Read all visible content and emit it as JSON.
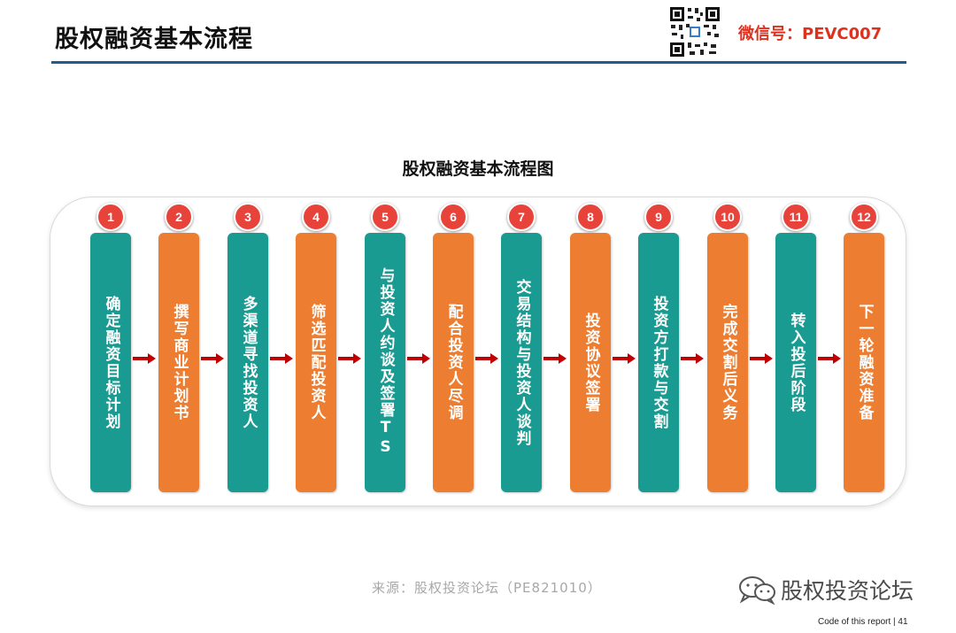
{
  "header": {
    "title": "股权融资基本流程",
    "wechat_label": "微信号：PEVC007"
  },
  "flow": {
    "title": "股权融资基本流程图",
    "steps": [
      {
        "num": "1",
        "label": "确定融资目标计划",
        "color": "#1a9b91"
      },
      {
        "num": "2",
        "label": "撰写商业计划书",
        "color": "#ed7d31"
      },
      {
        "num": "3",
        "label": "多渠道寻找投资人",
        "color": "#1a9b91"
      },
      {
        "num": "4",
        "label": "筛选匹配投资人",
        "color": "#ed7d31"
      },
      {
        "num": "5",
        "label": "与投资人约谈及签署TS",
        "color": "#1a9b91"
      },
      {
        "num": "6",
        "label": "配合投资人尽调",
        "color": "#ed7d31"
      },
      {
        "num": "7",
        "label": "交易结构与投资人谈判",
        "color": "#1a9b91"
      },
      {
        "num": "8",
        "label": "投资协议签署",
        "color": "#ed7d31"
      },
      {
        "num": "9",
        "label": "投资方打款与交割",
        "color": "#1a9b91"
      },
      {
        "num": "10",
        "label": "完成交割后义务",
        "color": "#ed7d31"
      },
      {
        "num": "11",
        "label": "转入投后阶段",
        "color": "#1a9b91"
      },
      {
        "num": "12",
        "label": "下一轮融资准备",
        "color": "#ed7d31"
      }
    ],
    "badge_color": "#e8433a",
    "arrow_color": "#c00000"
  },
  "source": "来源：股权投资论坛（PE821010）",
  "logo_text": "股权投资论坛",
  "footer": "Code of this report  | 41"
}
